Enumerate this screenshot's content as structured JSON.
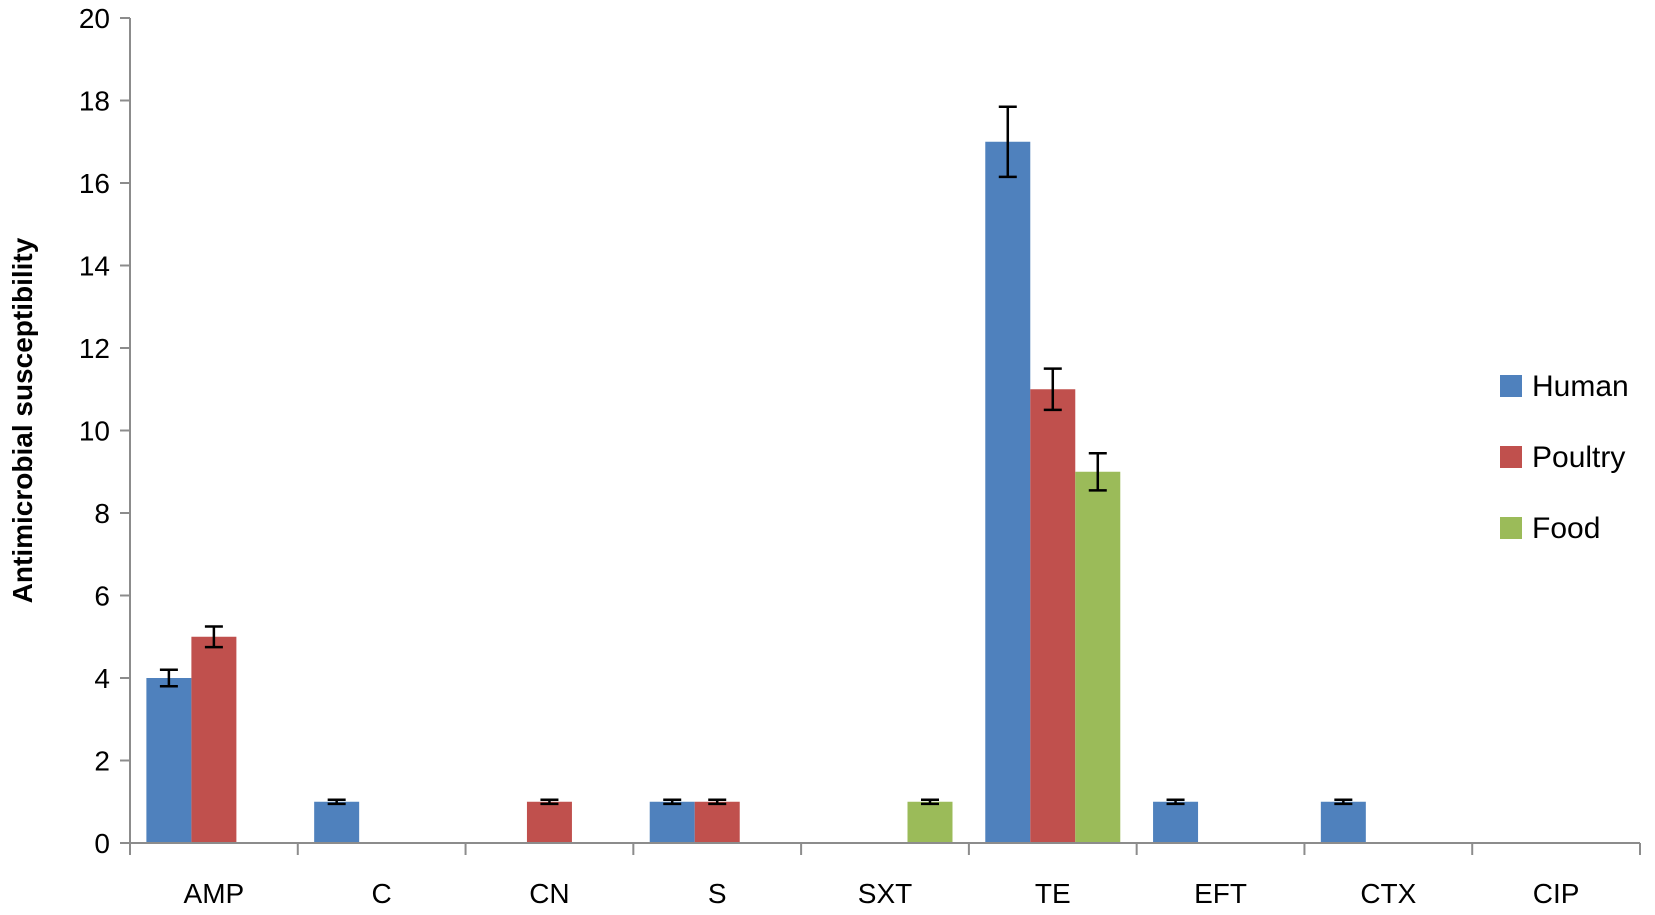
{
  "chart_data": {
    "type": "bar",
    "title": "",
    "xlabel": "",
    "ylabel": "Antimicrobial susceptibility",
    "ylim": [
      0,
      20
    ],
    "yticks": [
      0,
      2,
      4,
      6,
      8,
      10,
      12,
      14,
      16,
      18,
      20
    ],
    "categories": [
      "AMP",
      "C",
      "CN",
      "S",
      "SXT",
      "TE",
      "EFT",
      "CTX",
      "CIP"
    ],
    "series": [
      {
        "name": "Human",
        "color": "#4F81BD",
        "values": [
          4,
          1,
          0,
          1,
          0,
          17,
          1,
          1,
          0
        ],
        "errors": [
          0.2,
          0.05,
          0,
          0.05,
          0,
          0.85,
          0.05,
          0.05,
          0
        ]
      },
      {
        "name": "Poultry",
        "color": "#C0504D",
        "values": [
          5,
          0,
          1,
          1,
          0,
          11,
          0,
          0,
          0
        ],
        "errors": [
          0.25,
          0,
          0.05,
          0.05,
          0,
          0.5,
          0,
          0,
          0
        ]
      },
      {
        "name": "Food",
        "color": "#9BBB59",
        "values": [
          0,
          0,
          0,
          0,
          1,
          9,
          0,
          0,
          0
        ],
        "errors": [
          0,
          0,
          0,
          0,
          0.05,
          0.45,
          0,
          0,
          0
        ]
      }
    ],
    "grid": false,
    "legend_position": "right"
  }
}
